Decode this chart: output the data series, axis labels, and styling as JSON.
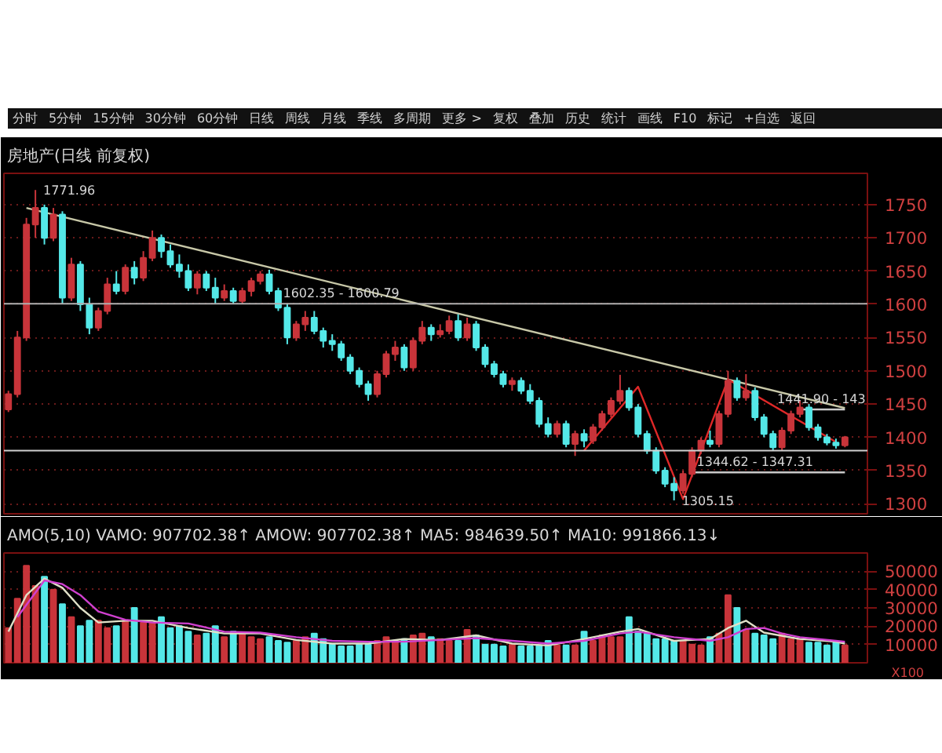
{
  "chart_data": [
    {
      "type": "candlestick",
      "title": "房地产(日线 前复权)",
      "annotations": [
        "分时",
        "5分钟",
        "15分钟",
        "30分钟",
        "60分钟",
        "日线",
        "周线",
        "月线",
        "季线",
        "多周期",
        "更多 >",
        "复权",
        "叠加",
        "历史",
        "统计",
        "画线",
        "F10",
        "标记",
        "+自选",
        "返回",
        "1771.96",
        {
          "text": "1602.35 - 1600.79",
          "y": 1600.79
        },
        {
          "text": "1344.62 - 1347.31",
          "y": 1347.31
        },
        {
          "text": "1441.90 - 143",
          "y": 1441.9
        },
        "1305.15"
      ],
      "categories": [
        null,
        null,
        null,
        null,
        null,
        null,
        null,
        null,
        null,
        null,
        null,
        null,
        null,
        null,
        null,
        null,
        null,
        null,
        null,
        null,
        null,
        null,
        null,
        null,
        null,
        null,
        null,
        null,
        null,
        null,
        null,
        null,
        null,
        null,
        null,
        null,
        null,
        null,
        null,
        null,
        null,
        null,
        null,
        null,
        null,
        null,
        null,
        null,
        null,
        null,
        null,
        null,
        null,
        null,
        null,
        null,
        null,
        null,
        null,
        null,
        null,
        null,
        null,
        null,
        null,
        null,
        null,
        null,
        null,
        null,
        null,
        null,
        null,
        null,
        null,
        null,
        null,
        null,
        null,
        null,
        null,
        null,
        null,
        null,
        null,
        null,
        null,
        null,
        null,
        null,
        null,
        null,
        null,
        null
      ],
      "ohlc": [
        [
          1442,
          1470,
          1438,
          1465
        ],
        [
          1465,
          1560,
          1460,
          1550
        ],
        [
          1550,
          1730,
          1545,
          1720
        ],
        [
          1720,
          1771.96,
          1700,
          1745
        ],
        [
          1745,
          1750,
          1690,
          1700
        ],
        [
          1700,
          1745,
          1695,
          1735
        ],
        [
          1735,
          1740,
          1600,
          1610
        ],
        [
          1610,
          1670,
          1605,
          1660
        ],
        [
          1660,
          1665,
          1590,
          1600
        ],
        [
          1600,
          1610,
          1555,
          1565
        ],
        [
          1565,
          1595,
          1560,
          1590
        ],
        [
          1590,
          1640,
          1585,
          1630
        ],
        [
          1630,
          1650,
          1615,
          1620
        ],
        [
          1620,
          1660,
          1615,
          1655
        ],
        [
          1655,
          1665,
          1630,
          1640
        ],
        [
          1640,
          1680,
          1635,
          1670
        ],
        [
          1670,
          1711,
          1665,
          1700
        ],
        [
          1700,
          1705,
          1670,
          1680
        ],
        [
          1680,
          1690,
          1655,
          1660
        ],
        [
          1660,
          1675,
          1640,
          1650
        ],
        [
          1650,
          1660,
          1620,
          1625
        ],
        [
          1625,
          1650,
          1615,
          1645
        ],
        [
          1645,
          1650,
          1620,
          1625
        ],
        [
          1625,
          1640,
          1600,
          1610
        ],
        [
          1610,
          1630,
          1605,
          1620
        ],
        [
          1620,
          1625,
          1600,
          1605
        ],
        [
          1605,
          1625,
          1600,
          1620
        ],
        [
          1620,
          1640,
          1612,
          1635
        ],
        [
          1635,
          1650,
          1630,
          1645
        ],
        [
          1645,
          1652,
          1615,
          1620
        ],
        [
          1620,
          1625,
          1590,
          1595
        ],
        [
          1595,
          1600,
          1540,
          1550
        ],
        [
          1550,
          1575,
          1545,
          1570
        ],
        [
          1570,
          1590,
          1560,
          1580
        ],
        [
          1580,
          1590,
          1555,
          1560
        ],
        [
          1560,
          1565,
          1535,
          1545
        ],
        [
          1545,
          1555,
          1530,
          1540
        ],
        [
          1540,
          1545,
          1515,
          1520
        ],
        [
          1520,
          1525,
          1495,
          1500
        ],
        [
          1500,
          1505,
          1475,
          1480
        ],
        [
          1480,
          1485,
          1455,
          1465
        ],
        [
          1465,
          1500,
          1460,
          1495
        ],
        [
          1495,
          1530,
          1490,
          1525
        ],
        [
          1525,
          1545,
          1515,
          1535
        ],
        [
          1535,
          1540,
          1500,
          1505
        ],
        [
          1505,
          1550,
          1500,
          1545
        ],
        [
          1545,
          1575,
          1540,
          1565
        ],
        [
          1565,
          1570,
          1545,
          1555
        ],
        [
          1555,
          1570,
          1550,
          1560
        ],
        [
          1560,
          1583,
          1555,
          1575
        ],
        [
          1575,
          1585,
          1545,
          1550
        ],
        [
          1550,
          1580,
          1545,
          1570
        ],
        [
          1570,
          1575,
          1530,
          1535
        ],
        [
          1535,
          1540,
          1505,
          1510
        ],
        [
          1510,
          1515,
          1490,
          1495
        ],
        [
          1495,
          1500,
          1475,
          1480
        ],
        [
          1480,
          1490,
          1470,
          1485
        ],
        [
          1485,
          1490,
          1465,
          1470
        ],
        [
          1470,
          1480,
          1450,
          1455
        ],
        [
          1455,
          1460,
          1415,
          1420
        ],
        [
          1420,
          1430,
          1400,
          1405
        ],
        [
          1405,
          1425,
          1400,
          1420
        ],
        [
          1420,
          1425,
          1385,
          1390
        ],
        [
          1390,
          1410,
          1372,
          1405
        ],
        [
          1405,
          1412,
          1385,
          1395
        ],
        [
          1395,
          1420,
          1390,
          1415
        ],
        [
          1415,
          1440,
          1410,
          1435
        ],
        [
          1435,
          1460,
          1430,
          1455
        ],
        [
          1455,
          1494,
          1450,
          1470
        ],
        [
          1470,
          1475,
          1440,
          1445
        ],
        [
          1445,
          1450,
          1400,
          1405
        ],
        [
          1405,
          1410,
          1375,
          1380
        ],
        [
          1380,
          1385,
          1345,
          1350
        ],
        [
          1350,
          1355,
          1325,
          1330
        ],
        [
          1330,
          1340,
          1305.15,
          1320
        ],
        [
          1320,
          1350,
          1315,
          1345
        ],
        [
          1345,
          1385,
          1340,
          1380
        ],
        [
          1380,
          1400,
          1375,
          1395
        ],
        [
          1395,
          1410,
          1385,
          1390
        ],
        [
          1390,
          1440,
          1385,
          1435
        ],
        [
          1435,
          1500,
          1430,
          1485
        ],
        [
          1485,
          1490,
          1455,
          1460
        ],
        [
          1460,
          1495,
          1455,
          1470
        ],
        [
          1470,
          1475,
          1425,
          1430
        ],
        [
          1430,
          1435,
          1400,
          1405
        ],
        [
          1405,
          1410,
          1380,
          1385
        ],
        [
          1385,
          1415,
          1380,
          1410
        ],
        [
          1410,
          1440,
          1405,
          1435
        ],
        [
          1435,
          1455,
          1430,
          1445
        ],
        [
          1445,
          1450,
          1410,
          1415
        ],
        [
          1415,
          1420,
          1395,
          1400
        ],
        [
          1400,
          1405,
          1388,
          1392
        ],
        [
          1392,
          1398,
          1383,
          1388
        ],
        [
          1388,
          1402,
          1385,
          1400
        ]
      ],
      "colors": [
        "#c8343a",
        "#c8343a",
        "#c8343a",
        "#c8343a",
        "#54e8e8",
        "#c8343a",
        "#54e8e8",
        "#c8343a",
        "#54e8e8",
        "#54e8e8",
        "#c8343a",
        "#c8343a",
        "#54e8e8",
        "#c8343a",
        "#54e8e8",
        "#c8343a",
        "#c8343a",
        "#54e8e8",
        "#54e8e8",
        "#54e8e8",
        "#54e8e8",
        "#c8343a",
        "#54e8e8",
        "#54e8e8",
        "#c8343a",
        "#54e8e8",
        "#c8343a",
        "#c8343a",
        "#c8343a",
        "#54e8e8",
        "#54e8e8",
        "#54e8e8",
        "#c8343a",
        "#c8343a",
        "#54e8e8",
        "#54e8e8",
        "#54e8e8",
        "#54e8e8",
        "#54e8e8",
        "#54e8e8",
        "#54e8e8",
        "#c8343a",
        "#c8343a",
        "#c8343a",
        "#54e8e8",
        "#c8343a",
        "#c8343a",
        "#54e8e8",
        "#c8343a",
        "#c8343a",
        "#54e8e8",
        "#c8343a",
        "#54e8e8",
        "#54e8e8",
        "#54e8e8",
        "#54e8e8",
        "#c8343a",
        "#54e8e8",
        "#54e8e8",
        "#54e8e8",
        "#54e8e8",
        "#c8343a",
        "#54e8e8",
        "#c8343a",
        "#54e8e8",
        "#c8343a",
        "#c8343a",
        "#c8343a",
        "#c8343a",
        "#54e8e8",
        "#54e8e8",
        "#54e8e8",
        "#54e8e8",
        "#54e8e8",
        "#54e8e8",
        "#c8343a",
        "#c8343a",
        "#c8343a",
        "#54e8e8",
        "#c8343a",
        "#c8343a",
        "#54e8e8",
        "#c8343a",
        "#54e8e8",
        "#54e8e8",
        "#54e8e8",
        "#c8343a",
        "#c8343a",
        "#c8343a",
        "#54e8e8",
        "#54e8e8",
        "#54e8e8",
        "#54e8e8",
        "#c8343a"
      ],
      "series": [
        {
          "type": "line",
          "color": "#c8c8a8",
          "values": [
            null,
            null,
            1745,
            null,
            null,
            null,
            null,
            null,
            null,
            null,
            null,
            null,
            null,
            null,
            null,
            null,
            null,
            null,
            null,
            null,
            null,
            null,
            null,
            null,
            null,
            null,
            null,
            null,
            null,
            null,
            null,
            null,
            null,
            null,
            null,
            null,
            null,
            null,
            null,
            null,
            null,
            null,
            null,
            null,
            null,
            null,
            null,
            null,
            null,
            null,
            null,
            null,
            null,
            null,
            null,
            null,
            null,
            null,
            null,
            null,
            null,
            null,
            null,
            null,
            null,
            null,
            null,
            null,
            null,
            null,
            null,
            null,
            null,
            null,
            null,
            null,
            null,
            null,
            null,
            null,
            null,
            null,
            null,
            null,
            null,
            null,
            null,
            null,
            null,
            null,
            null,
            null,
            null,
            1444
          ]
        },
        {
          "type": "line",
          "color": "#e02828",
          "values": [
            null,
            null,
            null,
            null,
            null,
            null,
            null,
            null,
            null,
            null,
            null,
            null,
            null,
            null,
            null,
            null,
            null,
            null,
            null,
            null,
            null,
            null,
            null,
            null,
            null,
            null,
            null,
            null,
            null,
            null,
            null,
            null,
            null,
            null,
            null,
            null,
            null,
            null,
            null,
            null,
            null,
            null,
            null,
            null,
            null,
            null,
            null,
            null,
            null,
            null,
            null,
            null,
            null,
            null,
            null,
            null,
            null,
            null,
            null,
            null,
            null,
            null,
            null,
            null,
            1380,
            null,
            null,
            null,
            null,
            null,
            1476,
            null,
            null,
            null,
            null,
            1307,
            null,
            null,
            null,
            null,
            1487,
            null,
            null,
            null,
            null,
            null,
            null,
            null,
            null,
            null,
            null,
            null,
            1393,
            null
          ]
        },
        {
          "type": "line",
          "color": "#c8c8c8",
          "values": [
            null,
            null,
            null,
            null,
            null,
            null,
            null,
            null,
            null,
            null,
            null,
            null,
            null,
            null,
            null,
            null,
            null,
            null,
            null,
            null,
            null,
            null,
            null,
            null,
            null,
            null,
            null,
            null,
            null,
            null,
            null,
            null,
            null,
            null,
            null,
            null,
            null,
            null,
            null,
            null,
            null,
            null,
            null,
            null,
            null,
            null,
            null,
            null,
            null,
            null,
            null,
            null,
            null,
            null,
            null,
            null,
            null,
            null,
            null,
            null,
            null,
            null,
            null,
            null,
            null,
            null,
            null,
            null,
            null,
            null,
            null,
            null,
            null,
            null,
            null,
            null,
            1347.31,
            null,
            null,
            null,
            null,
            null,
            null,
            null,
            null,
            null,
            null,
            null,
            null,
            null,
            null,
            null,
            null,
            1347.31
          ]
        },
        {
          "type": "line",
          "color": "#c8c8c8",
          "values": [
            null,
            null,
            null,
            null,
            null,
            null,
            null,
            null,
            null,
            null,
            null,
            null,
            null,
            null,
            null,
            null,
            null,
            null,
            null,
            null,
            null,
            null,
            null,
            null,
            null,
            null,
            null,
            null,
            null,
            null,
            null,
            null,
            null,
            null,
            null,
            null,
            null,
            null,
            null,
            null,
            null,
            null,
            null,
            null,
            null,
            null,
            null,
            null,
            null,
            null,
            null,
            null,
            null,
            null,
            null,
            null,
            null,
            null,
            null,
            null,
            null,
            null,
            null,
            null,
            null,
            null,
            null,
            null,
            null,
            null,
            null,
            null,
            null,
            null,
            null,
            null,
            null,
            null,
            null,
            null,
            null,
            null,
            null,
            null,
            null,
            null,
            null,
            null,
            1441.9,
            null,
            null,
            null,
            null,
            1441.9
          ]
        }
      ],
      "ref_lines": [
        {
          "axis": "y",
          "value": 1600.79,
          "color": "#b0b0b0"
        },
        {
          "axis": "y",
          "value": 1380,
          "color": "#d0d0d0"
        }
      ],
      "tick_labels": "y",
      "ylim": [
        1285,
        1797
      ],
      "yticks": [
        1300,
        1350,
        1400,
        1450,
        1500,
        1550,
        1600,
        1650,
        1700,
        1750
      ],
      "grid": "y"
    },
    {
      "type": "bar",
      "title": "AMO(5,10) VAMO: 907702.38↑  AMOW: 907702.38↑  MA5: 984639.50↑  MA10: 991866.13↓",
      "annotations": [
        "X100"
      ],
      "categories": [
        null,
        null,
        null,
        null,
        null,
        null,
        null,
        null,
        null,
        null,
        null,
        null,
        null,
        null,
        null,
        null,
        null,
        null,
        null,
        null,
        null,
        null,
        null,
        null,
        null,
        null,
        null,
        null,
        null,
        null,
        null,
        null,
        null,
        null,
        null,
        null,
        null,
        null,
        null,
        null,
        null,
        null,
        null,
        null,
        null,
        null,
        null,
        null,
        null,
        null,
        null,
        null,
        null,
        null,
        null,
        null,
        null,
        null,
        null,
        null,
        null,
        null,
        null,
        null,
        null,
        null,
        null,
        null,
        null,
        null,
        null,
        null,
        null,
        null,
        null,
        null,
        null,
        null,
        null,
        null,
        null,
        null,
        null,
        null,
        null,
        null,
        null,
        null,
        null,
        null,
        null,
        null,
        null,
        null
      ],
      "series": [
        {
          "type": "bar",
          "values": [
            19000,
            35000,
            53000,
            42000,
            47000,
            40000,
            32000,
            25000,
            20000,
            23000,
            23000,
            19000,
            20000,
            23000,
            30000,
            22000,
            22000,
            25000,
            19000,
            20000,
            17000,
            15000,
            16000,
            20000,
            14000,
            17000,
            16000,
            14000,
            13000,
            14000,
            12000,
            11000,
            12000,
            14000,
            16000,
            13000,
            10000,
            9000,
            9000,
            10000,
            10000,
            12000,
            14000,
            12000,
            13000,
            15000,
            16000,
            14000,
            13000,
            12000,
            12000,
            18000,
            15000,
            10000,
            10000,
            9000,
            10000,
            9000,
            9000,
            9500,
            12000,
            9500,
            9500,
            9500,
            17000,
            12000,
            15000,
            14000,
            14000,
            25000,
            17000,
            16000,
            13000,
            13000,
            12000,
            12000,
            10000,
            9500,
            14000,
            16000,
            37000,
            30000,
            18000,
            16000,
            15000,
            13000,
            16000,
            13000,
            13000,
            11000,
            11000,
            9500,
            11000,
            9500
          ],
          "colors": [
            "#c8343a",
            "#c8343a",
            "#c8343a",
            "#c8343a",
            "#54e8e8",
            "#c8343a",
            "#54e8e8",
            "#c8343a",
            "#54e8e8",
            "#54e8e8",
            "#c8343a",
            "#c8343a",
            "#54e8e8",
            "#c8343a",
            "#54e8e8",
            "#c8343a",
            "#c8343a",
            "#54e8e8",
            "#54e8e8",
            "#54e8e8",
            "#54e8e8",
            "#c8343a",
            "#54e8e8",
            "#54e8e8",
            "#c8343a",
            "#54e8e8",
            "#c8343a",
            "#c8343a",
            "#c8343a",
            "#54e8e8",
            "#54e8e8",
            "#54e8e8",
            "#c8343a",
            "#c8343a",
            "#54e8e8",
            "#54e8e8",
            "#54e8e8",
            "#54e8e8",
            "#54e8e8",
            "#54e8e8",
            "#54e8e8",
            "#c8343a",
            "#c8343a",
            "#c8343a",
            "#54e8e8",
            "#c8343a",
            "#c8343a",
            "#54e8e8",
            "#c8343a",
            "#c8343a",
            "#54e8e8",
            "#c8343a",
            "#54e8e8",
            "#54e8e8",
            "#54e8e8",
            "#54e8e8",
            "#c8343a",
            "#54e8e8",
            "#54e8e8",
            "#54e8e8",
            "#54e8e8",
            "#c8343a",
            "#54e8e8",
            "#c8343a",
            "#54e8e8",
            "#c8343a",
            "#c8343a",
            "#c8343a",
            "#c8343a",
            "#54e8e8",
            "#54e8e8",
            "#54e8e8",
            "#54e8e8",
            "#54e8e8",
            "#54e8e8",
            "#c8343a",
            "#c8343a",
            "#c8343a",
            "#54e8e8",
            "#c8343a",
            "#c8343a",
            "#54e8e8",
            "#c8343a",
            "#54e8e8",
            "#54e8e8",
            "#54e8e8",
            "#c8343a",
            "#c8343a",
            "#c8343a",
            "#54e8e8",
            "#54e8e8",
            "#54e8e8",
            "#54e8e8",
            "#c8343a"
          ]
        },
        {
          "type": "line",
          "color": "#e0e0c8",
          "values": [
            17000,
            null,
            37000,
            null,
            46000,
            null,
            41000,
            null,
            30000,
            null,
            22000,
            null,
            null,
            23000,
            null,
            null,
            23000,
            null,
            null,
            null,
            19000,
            null,
            null,
            null,
            16000,
            null,
            null,
            null,
            16000,
            null,
            null,
            null,
            12500,
            null,
            null,
            null,
            10500,
            null,
            null,
            null,
            10500,
            null,
            null,
            null,
            13000,
            null,
            null,
            null,
            12500,
            null,
            null,
            null,
            15000,
            null,
            null,
            null,
            10500,
            null,
            null,
            null,
            9500,
            null,
            null,
            null,
            13000,
            null,
            null,
            null,
            17000,
            null,
            18500,
            null,
            null,
            null,
            12000,
            null,
            null,
            null,
            13000,
            null,
            19000,
            null,
            23000,
            null,
            16500,
            null,
            null,
            null,
            13000,
            null,
            null,
            null,
            11500,
            10500
          ]
        },
        {
          "type": "line",
          "color": "#d040d0",
          "values": [
            null,
            25000,
            null,
            null,
            45000,
            null,
            43000,
            null,
            37000,
            null,
            28000,
            null,
            null,
            23500,
            null,
            null,
            22000,
            null,
            null,
            null,
            21500,
            null,
            null,
            null,
            17000,
            null,
            null,
            null,
            16500,
            null,
            null,
            null,
            14000,
            null,
            null,
            null,
            12000,
            null,
            null,
            null,
            11500,
            null,
            null,
            null,
            11500,
            null,
            null,
            null,
            12500,
            null,
            null,
            null,
            13500,
            null,
            null,
            null,
            12000,
            null,
            null,
            null,
            10500,
            null,
            null,
            null,
            12000,
            null,
            null,
            null,
            16000,
            null,
            17000,
            null,
            null,
            null,
            14000,
            null,
            null,
            null,
            12000,
            null,
            14000,
            null,
            18500,
            null,
            19000,
            null,
            16000,
            null,
            14000,
            null,
            null,
            null,
            12000,
            11500
          ]
        }
      ],
      "tick_labels": "y",
      "ylim": [
        0,
        60000
      ],
      "yticks": [
        10000,
        20000,
        30000,
        40000,
        50000
      ],
      "grid": "y"
    }
  ]
}
